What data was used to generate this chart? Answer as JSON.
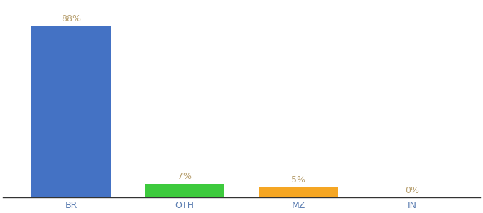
{
  "categories": [
    "BR",
    "OTH",
    "MZ",
    "IN"
  ],
  "values": [
    88,
    7,
    5,
    0
  ],
  "bar_colors": [
    "#4472c4",
    "#3dca3d",
    "#f5a623",
    "#f5a623"
  ],
  "labels": [
    "88%",
    "7%",
    "5%",
    "0%"
  ],
  "label_color": "#b8a070",
  "tick_color": "#5b7db1",
  "background_color": "#ffffff",
  "bar_width": 0.7,
  "ylim": [
    0,
    100
  ],
  "label_fontsize": 9,
  "tick_fontsize": 9
}
